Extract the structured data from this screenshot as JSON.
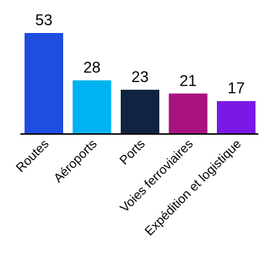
{
  "chart_data": {
    "type": "bar",
    "categories": [
      "Routes",
      "Aéroports",
      "Ports",
      "Voies ferroviaires",
      "Expédition et logistique"
    ],
    "values": [
      53,
      28,
      23,
      21,
      17
    ],
    "colors": [
      "#1F4DE0",
      "#00B3F0",
      "#0E2440",
      "#A8137F",
      "#7A18E6"
    ],
    "ylim": [
      0,
      53
    ],
    "grid": false,
    "legend": "none",
    "data_labels": true
  }
}
